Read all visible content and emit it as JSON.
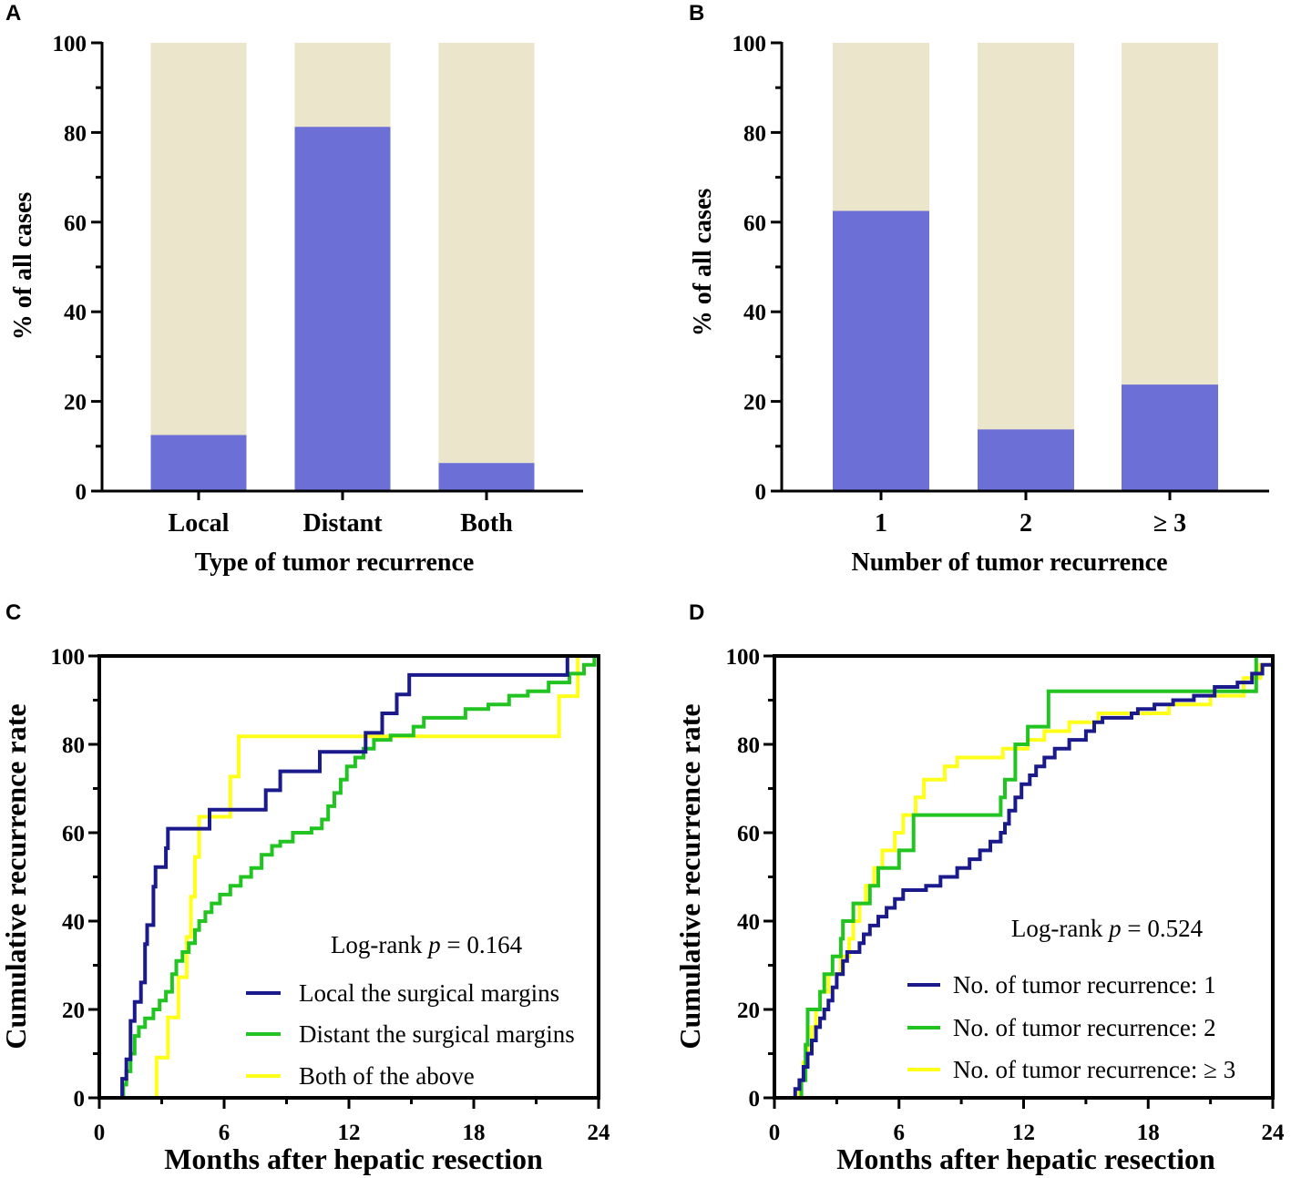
{
  "panels": {
    "A": {
      "letter": "A"
    },
    "B": {
      "letter": "B"
    },
    "C": {
      "letter": "C"
    },
    "D": {
      "letter": "D"
    }
  },
  "colors": {
    "bar_fill": "#6b6fd6",
    "bar_background": "#ebe5cb",
    "navy": "#1a1a8c",
    "green": "#22c422",
    "yellow": "#ffff1a"
  },
  "chart_data": [
    {
      "id": "A",
      "type": "bar",
      "categories": [
        "Local",
        "Distant",
        "Both"
      ],
      "values": [
        12.5,
        81.25,
        6.25
      ],
      "ylim": [
        0,
        100
      ],
      "yticks": [
        0,
        20,
        40,
        60,
        80,
        100
      ],
      "xlabel": "Type of tumor recurrence",
      "ylabel": "% of all cases"
    },
    {
      "id": "B",
      "type": "bar",
      "categories": [
        "1",
        "2",
        "≥ 3"
      ],
      "values": [
        62.5,
        13.75,
        23.75
      ],
      "ylim": [
        0,
        100
      ],
      "yticks": [
        0,
        20,
        40,
        60,
        80,
        100
      ],
      "xlabel": "Number of tumor recurrence",
      "ylabel": "% of all cases"
    },
    {
      "id": "C",
      "type": "line",
      "step": true,
      "xlim": [
        0,
        24
      ],
      "ylim": [
        0,
        100
      ],
      "xticks": [
        0,
        6,
        12,
        18,
        24
      ],
      "yticks": [
        0,
        20,
        40,
        60,
        80,
        100
      ],
      "xlabel": "Months after hepatic resection",
      "ylabel": "Cumulative recurrence rate",
      "annotation": {
        "prefix": "Log-rank ",
        "p_symbol": "p",
        "suffix": " = 0.164"
      },
      "series": [
        {
          "name": "Local the surgical margins",
          "color": "#1a1a8c",
          "points": [
            [
              0,
              0
            ],
            [
              0.9,
              0
            ],
            [
              1.1,
              4.3
            ],
            [
              1.3,
              8.7
            ],
            [
              1.5,
              17.4
            ],
            [
              1.7,
              21.7
            ],
            [
              2.0,
              26.1
            ],
            [
              2.2,
              34.8
            ],
            [
              2.3,
              39.1
            ],
            [
              2.6,
              47.8
            ],
            [
              2.7,
              52.2
            ],
            [
              3.2,
              56.5
            ],
            [
              3.3,
              60.9
            ],
            [
              5.3,
              65.2
            ],
            [
              8.0,
              69.6
            ],
            [
              8.7,
              73.9
            ],
            [
              10.6,
              78.3
            ],
            [
              12.8,
              82.6
            ],
            [
              13.6,
              87.0
            ],
            [
              14.3,
              91.3
            ],
            [
              14.9,
              95.7
            ],
            [
              22.5,
              100
            ]
          ]
        },
        {
          "name": "Distant the surgical margins",
          "color": "#22c422",
          "points": [
            [
              0,
              0
            ],
            [
              1.0,
              0
            ],
            [
              1.15,
              3
            ],
            [
              1.3,
              6
            ],
            [
              1.5,
              10
            ],
            [
              1.7,
              14
            ],
            [
              1.9,
              16
            ],
            [
              2.2,
              18
            ],
            [
              2.6,
              20
            ],
            [
              2.9,
              22
            ],
            [
              3.2,
              24
            ],
            [
              3.5,
              28
            ],
            [
              3.7,
              31
            ],
            [
              4.0,
              33
            ],
            [
              4.3,
              35
            ],
            [
              4.6,
              38
            ],
            [
              4.8,
              40
            ],
            [
              5.1,
              42
            ],
            [
              5.4,
              44
            ],
            [
              5.8,
              46
            ],
            [
              6.3,
              48
            ],
            [
              6.8,
              50
            ],
            [
              7.3,
              52
            ],
            [
              7.8,
              55
            ],
            [
              8.3,
              57
            ],
            [
              8.7,
              58
            ],
            [
              9.3,
              60
            ],
            [
              10.2,
              61
            ],
            [
              10.7,
              63
            ],
            [
              11.0,
              66
            ],
            [
              11.3,
              69
            ],
            [
              11.6,
              72
            ],
            [
              11.9,
              75
            ],
            [
              12.3,
              77
            ],
            [
              12.7,
              79
            ],
            [
              13.2,
              81
            ],
            [
              14.0,
              82
            ],
            [
              15.1,
              84
            ],
            [
              15.6,
              86
            ],
            [
              17.6,
              88
            ],
            [
              18.7,
              89
            ],
            [
              19.7,
              91
            ],
            [
              20.6,
              92
            ],
            [
              21.6,
              94
            ],
            [
              22.6,
              96
            ],
            [
              23.3,
              98
            ],
            [
              23.8,
              100
            ]
          ]
        },
        {
          "name": "Both of the above",
          "color": "#ffff1a",
          "points": [
            [
              0,
              0
            ],
            [
              2.7,
              0
            ],
            [
              2.75,
              9.1
            ],
            [
              3.2,
              9.1
            ],
            [
              3.3,
              18.2
            ],
            [
              3.7,
              18.2
            ],
            [
              3.8,
              27.3
            ],
            [
              4.1,
              27.3
            ],
            [
              4.2,
              36.4
            ],
            [
              4.4,
              45.5
            ],
            [
              4.6,
              54.5
            ],
            [
              4.8,
              63.6
            ],
            [
              6.3,
              72.7
            ],
            [
              6.7,
              81.8
            ],
            [
              22.0,
              81.8
            ],
            [
              22.1,
              90.9
            ],
            [
              22.9,
              90.9
            ],
            [
              23.0,
              100
            ]
          ]
        }
      ]
    },
    {
      "id": "D",
      "type": "line",
      "step": true,
      "xlim": [
        0,
        24
      ],
      "ylim": [
        0,
        100
      ],
      "xticks": [
        0,
        6,
        12,
        18,
        24
      ],
      "yticks": [
        0,
        20,
        40,
        60,
        80,
        100
      ],
      "xlabel": "Months after hepatic resection",
      "ylabel": "Cumulative recurrence rate",
      "annotation": {
        "prefix": "Log-rank ",
        "p_symbol": "p",
        "suffix": " = 0.524"
      },
      "series": [
        {
          "name": "No. of tumor recurrence: 1",
          "color": "#1a1a8c",
          "points": [
            [
              0,
              0
            ],
            [
              0.9,
              0
            ],
            [
              1.0,
              2
            ],
            [
              1.2,
              4
            ],
            [
              1.4,
              7
            ],
            [
              1.6,
              10
            ],
            [
              1.8,
              13
            ],
            [
              2.0,
              16
            ],
            [
              2.2,
              18
            ],
            [
              2.4,
              20
            ],
            [
              2.6,
              22
            ],
            [
              2.8,
              25
            ],
            [
              3.0,
              28
            ],
            [
              3.3,
              31
            ],
            [
              3.5,
              33
            ],
            [
              4.1,
              35
            ],
            [
              4.3,
              37
            ],
            [
              4.6,
              39
            ],
            [
              5.0,
              41
            ],
            [
              5.4,
              43
            ],
            [
              5.8,
              45
            ],
            [
              6.2,
              47
            ],
            [
              7.3,
              48
            ],
            [
              8.0,
              50
            ],
            [
              8.8,
              52
            ],
            [
              9.4,
              54
            ],
            [
              9.9,
              56
            ],
            [
              10.4,
              58
            ],
            [
              10.9,
              60
            ],
            [
              11.1,
              62
            ],
            [
              11.3,
              65
            ],
            [
              11.6,
              68
            ],
            [
              11.9,
              71
            ],
            [
              12.3,
              73
            ],
            [
              12.6,
              75
            ],
            [
              13.0,
              77
            ],
            [
              13.5,
              79
            ],
            [
              14.2,
              81
            ],
            [
              15.0,
              83
            ],
            [
              15.4,
              85
            ],
            [
              15.8,
              86
            ],
            [
              17.2,
              87
            ],
            [
              17.5,
              88
            ],
            [
              18.3,
              89
            ],
            [
              19.2,
              90
            ],
            [
              20.2,
              91
            ],
            [
              21.2,
              93
            ],
            [
              22.3,
              94
            ],
            [
              23.0,
              96
            ],
            [
              23.5,
              98
            ],
            [
              24,
              99
            ]
          ]
        },
        {
          "name": "No. of tumor recurrence: 2",
          "color": "#22c422",
          "points": [
            [
              0,
              0
            ],
            [
              1.0,
              0
            ],
            [
              1.3,
              4
            ],
            [
              1.5,
              12
            ],
            [
              1.6,
              20
            ],
            [
              2.2,
              24
            ],
            [
              2.4,
              28
            ],
            [
              2.8,
              32
            ],
            [
              3.2,
              36
            ],
            [
              3.3,
              40
            ],
            [
              3.8,
              44
            ],
            [
              4.6,
              48
            ],
            [
              5.0,
              52
            ],
            [
              6.0,
              56
            ],
            [
              6.7,
              64
            ],
            [
              10.9,
              68
            ],
            [
              11.1,
              72
            ],
            [
              11.6,
              80
            ],
            [
              12.2,
              84
            ],
            [
              13.2,
              92
            ],
            [
              23.0,
              92
            ],
            [
              23.2,
              100
            ]
          ]
        },
        {
          "name": "No. of tumor recurrence: ≥ 3",
          "color": "#ffff1a",
          "points": [
            [
              0,
              0
            ],
            [
              1.0,
              0
            ],
            [
              1.2,
              4
            ],
            [
              1.4,
              8
            ],
            [
              1.6,
              12
            ],
            [
              1.8,
              16
            ],
            [
              2.0,
              20
            ],
            [
              2.2,
              24
            ],
            [
              2.6,
              28
            ],
            [
              3.2,
              32
            ],
            [
              3.6,
              36
            ],
            [
              3.8,
              40
            ],
            [
              4.1,
              44
            ],
            [
              4.4,
              48
            ],
            [
              4.8,
              52
            ],
            [
              5.2,
              56
            ],
            [
              5.8,
              60
            ],
            [
              6.2,
              64
            ],
            [
              6.8,
              68
            ],
            [
              7.2,
              72
            ],
            [
              8.2,
              75
            ],
            [
              8.8,
              77
            ],
            [
              11.0,
              79
            ],
            [
              12.2,
              81
            ],
            [
              13.0,
              83
            ],
            [
              14.2,
              85
            ],
            [
              15.6,
              87
            ],
            [
              19.0,
              89
            ],
            [
              21.0,
              91
            ],
            [
              22.6,
              95
            ],
            [
              23.4,
              98
            ],
            [
              24,
              100
            ]
          ]
        }
      ]
    }
  ]
}
